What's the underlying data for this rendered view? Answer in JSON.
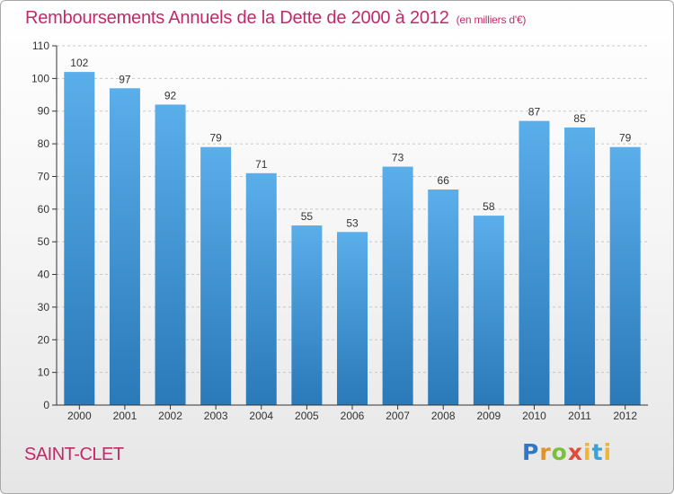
{
  "colors": {
    "accent": "#c12a6a",
    "bar_light": "#5aaeea",
    "bar_dark": "#2a79b8",
    "axis": "#333333",
    "grid": "#c8c8c8"
  },
  "commune": "SAINT-CLET",
  "logo": {
    "letters": [
      "P",
      "r",
      "o",
      "x",
      "i",
      "t",
      "i"
    ]
  },
  "chart_data": {
    "type": "bar",
    "title": "Remboursements Annuels de la Dette de 2000 à 2012",
    "subtitle": "(en milliers d'€)",
    "xlabel": "",
    "ylabel": "",
    "categories": [
      "2000",
      "2001",
      "2002",
      "2003",
      "2004",
      "2005",
      "2006",
      "2007",
      "2008",
      "2009",
      "2010",
      "2011",
      "2012"
    ],
    "values": [
      102,
      97,
      92,
      79,
      71,
      55,
      53,
      73,
      66,
      58,
      87,
      85,
      79
    ],
    "ylim": [
      0,
      110
    ],
    "yticks": [
      0,
      10,
      20,
      30,
      40,
      50,
      60,
      70,
      80,
      90,
      100,
      110
    ],
    "grid": "horizontal-dashed",
    "legend": "none"
  }
}
